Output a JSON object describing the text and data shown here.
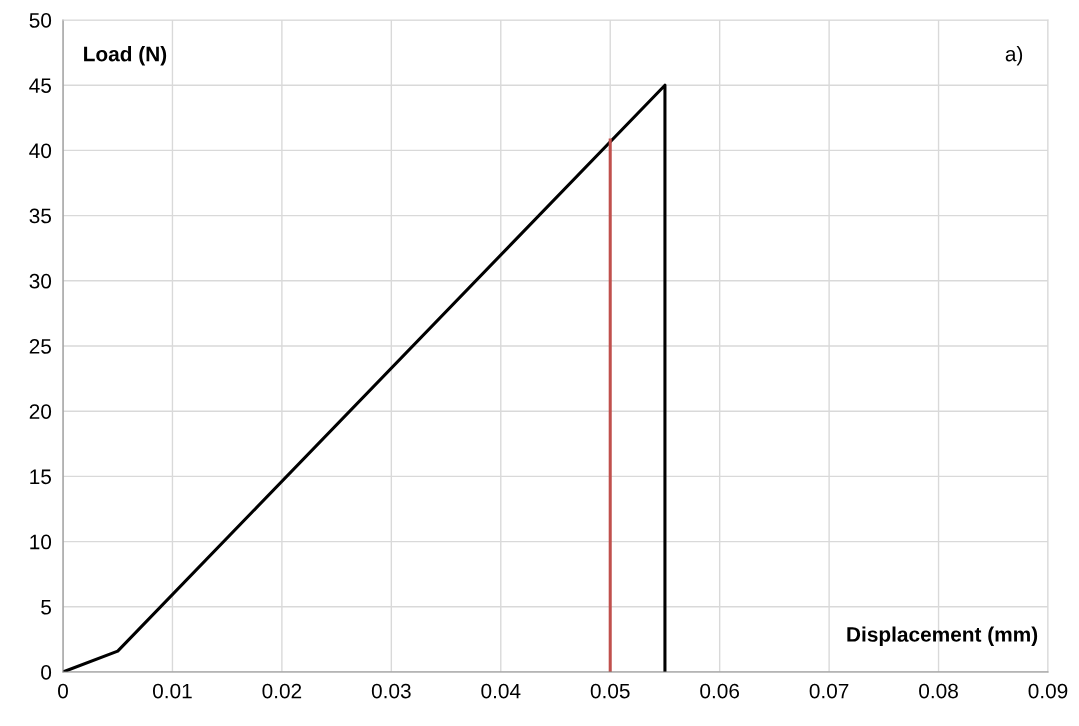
{
  "chart_data": {
    "type": "line",
    "xlabel": "Displacement (mm)",
    "ylabel": "Load (N)",
    "annotations": [
      "a)"
    ],
    "series": [
      {
        "x": [
          0,
          0.005,
          0.055,
          0.055
        ],
        "values": [
          0,
          1.6,
          45,
          0
        ],
        "color": "#000000"
      },
      {
        "x": [
          0.05,
          0.05
        ],
        "values": [
          0,
          40.8
        ],
        "color": "#c0504d"
      }
    ],
    "xlim": [
      0,
      0.09
    ],
    "xticks": [
      0,
      0.01,
      0.02,
      0.03,
      0.04,
      0.05,
      0.06,
      0.07,
      0.08,
      0.09
    ],
    "ylim": [
      0,
      50
    ],
    "yticks": [
      0,
      5,
      10,
      15,
      20,
      25,
      30,
      35,
      40,
      45,
      50
    ],
    "grid": true,
    "legend": false,
    "marker": "none",
    "line_style": "solid"
  }
}
